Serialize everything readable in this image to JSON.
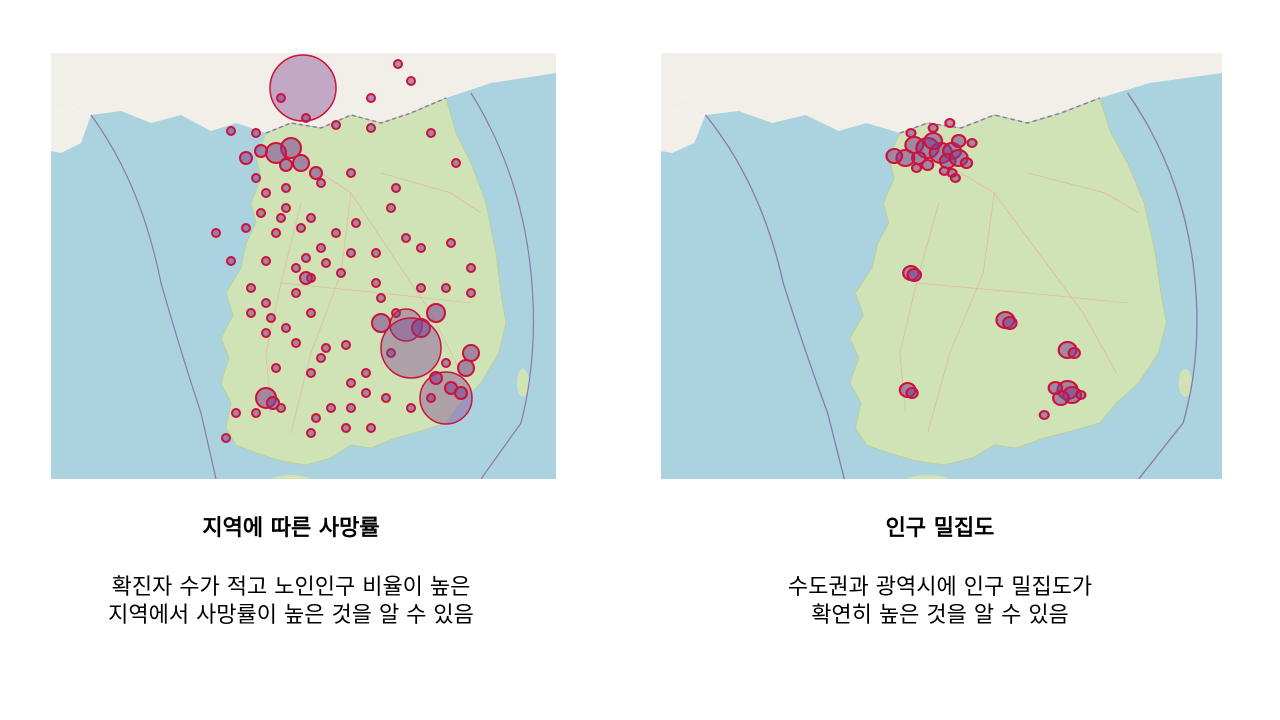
{
  "panels": [
    {
      "id": "left",
      "title": "지역에 따른 사망률",
      "description_lines": [
        "확진자 수가 적고 노인인구 비율이 높은",
        "지역에서 사망률이 높은 것을 알 수 있음"
      ]
    },
    {
      "id": "right",
      "title": "인구 밀집도",
      "description_lines": [
        "수도권과 광역시에 인구 밀집도가",
        "확연히 높은 것을 알 수 있음"
      ]
    }
  ],
  "colors": {
    "sea": "#aad3df",
    "land_north": "#f2efe9",
    "land_south": "#cfe3b7",
    "marker_stroke": "#d0103a",
    "marker_fill": "#7a3e8f",
    "border": "#8c7aa8"
  }
}
